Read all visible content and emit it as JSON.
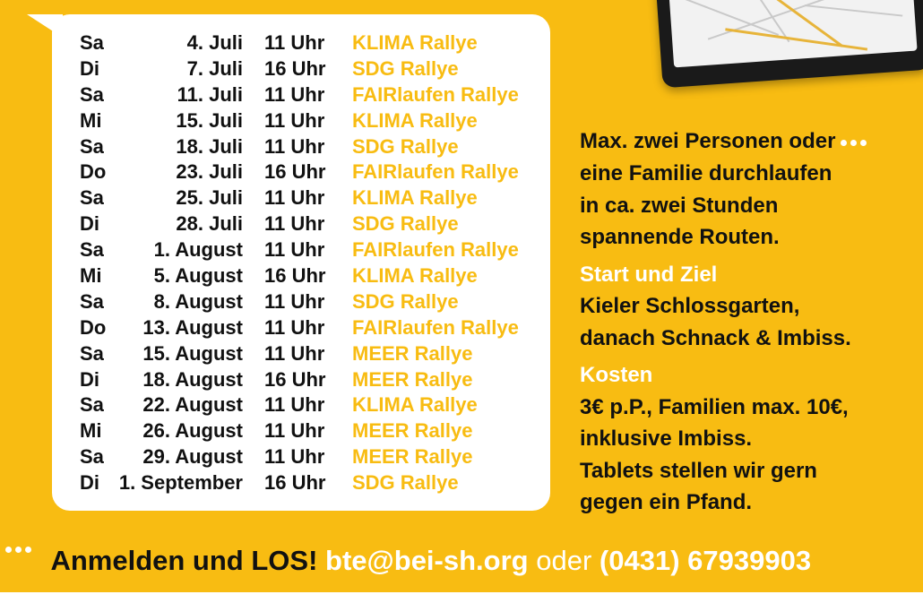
{
  "schedule": [
    {
      "day": "Sa",
      "date": "4. Juli",
      "time": "11 Uhr",
      "event": "KLIMA Rallye"
    },
    {
      "day": "Di",
      "date": "7. Juli",
      "time": "16 Uhr",
      "event": "SDG Rallye"
    },
    {
      "day": "Sa",
      "date": "11. Juli",
      "time": "11 Uhr",
      "event": "FAIRlaufen Rallye"
    },
    {
      "day": "Mi",
      "date": "15. Juli",
      "time": "11 Uhr",
      "event": "KLIMA Rallye"
    },
    {
      "day": "Sa",
      "date": "18. Juli",
      "time": "11 Uhr",
      "event": "SDG Rallye"
    },
    {
      "day": "Do",
      "date": "23. Juli",
      "time": "16 Uhr",
      "event": "FAIRlaufen Rallye"
    },
    {
      "day": "Sa",
      "date": "25. Juli",
      "time": "11 Uhr",
      "event": "KLIMA Rallye"
    },
    {
      "day": "Di",
      "date": "28. Juli",
      "time": "11 Uhr",
      "event": "SDG Rallye"
    },
    {
      "day": "Sa",
      "date": "1. August",
      "time": "11 Uhr",
      "event": "FAIRlaufen Rallye"
    },
    {
      "day": "Mi",
      "date": "5. August",
      "time": "16 Uhr",
      "event": "KLIMA Rallye"
    },
    {
      "day": "Sa",
      "date": "8. August",
      "time": "11 Uhr",
      "event": "SDG Rallye"
    },
    {
      "day": "Do",
      "date": "13. August",
      "time": "11 Uhr",
      "event": "FAIRlaufen Rallye"
    },
    {
      "day": "Sa",
      "date": "15. August",
      "time": "11 Uhr",
      "event": "MEER Rallye"
    },
    {
      "day": "Di",
      "date": "18. August",
      "time": "16 Uhr",
      "event": "MEER Rallye"
    },
    {
      "day": "Sa",
      "date": "22. August",
      "time": "11 Uhr",
      "event": "KLIMA Rallye"
    },
    {
      "day": "Mi",
      "date": "26. August",
      "time": "11 Uhr",
      "event": "MEER Rallye"
    },
    {
      "day": "Sa",
      "date": "29. August",
      "time": "11 Uhr",
      "event": "MEER Rallye"
    },
    {
      "day": "Di",
      "date": "1. September",
      "time": "16 Uhr",
      "event": "SDG Rallye"
    }
  ],
  "info": {
    "intro_lines": [
      "Max. zwei Personen oder",
      "eine Familie durchlaufen",
      "in ca. zwei Stunden",
      "spannende Routen."
    ],
    "start_heading": "Start und Ziel",
    "start_lines": [
      "Kieler Schlossgarten,",
      "danach Schnack & Imbiss."
    ],
    "cost_heading": "Kosten",
    "cost_lines": [
      "3€ p.P., Familien max. 10€,",
      "inklusive Imbiss.",
      "Tablets stellen wir gern",
      "gegen ein Pfand."
    ]
  },
  "cta": {
    "label": "Anmelden und LOS!",
    "email": "bte@bei-sh.org",
    "connector": "oder",
    "phone": "(0431) 67939903"
  },
  "colors": {
    "background": "#F8BC12",
    "accent": "#F8BC12",
    "text": "#111111",
    "highlight": "#FFFFFF"
  },
  "icons": {
    "dots": "ellipsis-dots-icon",
    "tablet": "tablet-map-image"
  }
}
